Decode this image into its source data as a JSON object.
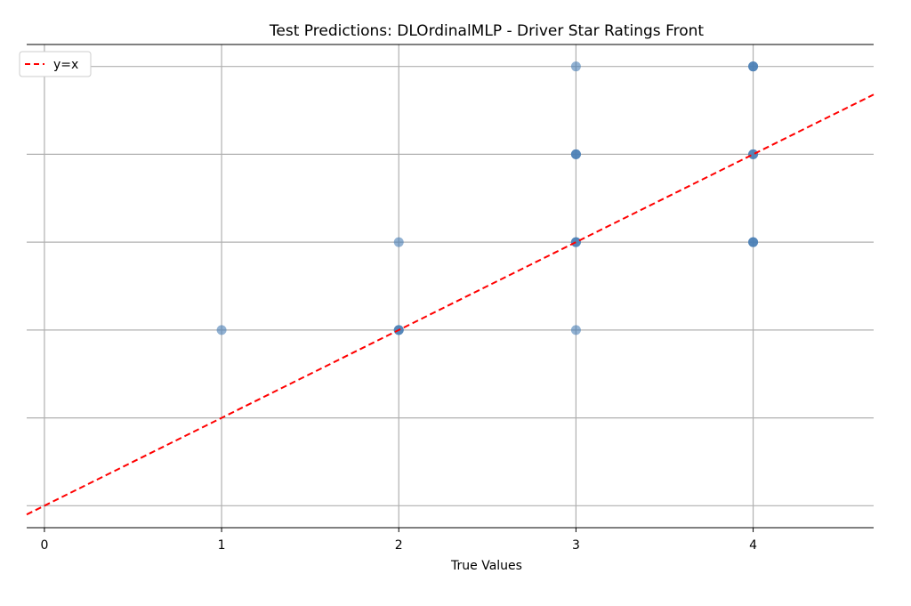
{
  "chart_data": {
    "type": "scatter",
    "title": "Test Predictions: DLOrdinalMLP - Driver Star Ratings Front",
    "xlabel": "True Values",
    "ylabel": "",
    "xlim": [
      -0.1,
      4.68
    ],
    "ylim": [
      -0.25,
      5.25
    ],
    "x_ticks": [
      0,
      1,
      2,
      3,
      4
    ],
    "x_tick_labels": [
      "0",
      "1",
      "2",
      "3",
      "4"
    ],
    "y_ticks": [
      0,
      1,
      2,
      3,
      4,
      5
    ],
    "grid": true,
    "legend": {
      "position": "top-left",
      "entries": [
        "y=x"
      ]
    },
    "series": [
      {
        "name": "",
        "kind": "points",
        "color": "#4a7fb5",
        "points": [
          {
            "x": 1,
            "y": 2,
            "count": 1
          },
          {
            "x": 2,
            "y": 2,
            "count": 3
          },
          {
            "x": 2,
            "y": 3,
            "count": 1
          },
          {
            "x": 3,
            "y": 2,
            "count": 1
          },
          {
            "x": 3,
            "y": 3,
            "count": 3
          },
          {
            "x": 3,
            "y": 4,
            "count": 3
          },
          {
            "x": 3,
            "y": 5,
            "count": 1
          },
          {
            "x": 4,
            "y": 3,
            "count": 3
          },
          {
            "x": 4,
            "y": 4,
            "count": 3
          },
          {
            "x": 4,
            "y": 5,
            "count": 3
          }
        ]
      },
      {
        "name": "y=x",
        "kind": "line",
        "style": "dashed",
        "color": "#ff0000",
        "x": [
          -0.1,
          4.68
        ],
        "y": [
          -0.1,
          4.68
        ]
      }
    ]
  }
}
